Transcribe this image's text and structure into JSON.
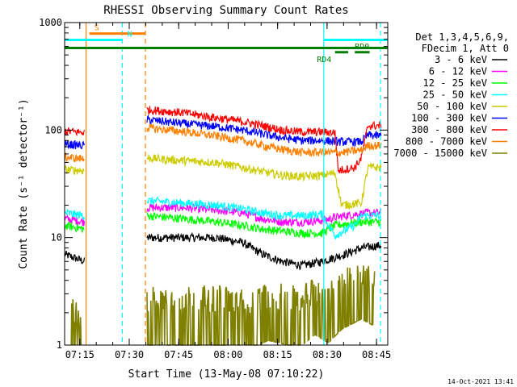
{
  "chart_data": {
    "type": "line",
    "title": "RHESSI Observing Summary Count Rates",
    "xlabel": "Start Time (13-May-08 07:10:22)",
    "ylabel": "Count Rate (s⁻¹ detector⁻¹)",
    "ylog": true,
    "xlim_min": [
      0,
      98
    ],
    "ylim": [
      1,
      1000
    ],
    "xticks": [
      {
        "t": 4.6,
        "label": "07:15"
      },
      {
        "t": 19.6,
        "label": "07:30"
      },
      {
        "t": 34.6,
        "label": "07:45"
      },
      {
        "t": 49.6,
        "label": "08:00"
      },
      {
        "t": 64.6,
        "label": "08:15"
      },
      {
        "t": 79.6,
        "label": "08:30"
      },
      {
        "t": 94.6,
        "label": "08:45"
      }
    ],
    "yticks": [
      {
        "v": 1,
        "label": "1"
      },
      {
        "v": 10,
        "label": "10"
      },
      {
        "v": 100,
        "label": "100"
      },
      {
        "v": 1000,
        "label": "1000"
      }
    ],
    "legend_title": [
      "Det 1,3,4,5,6,9,",
      "FDecim 1, Att 0"
    ],
    "legend_placement": "right",
    "footer_date": "14-Oct-2021 13:41",
    "flags": [
      {
        "label": "S",
        "color": "#ff8000",
        "x1": 7.5,
        "x2": 24.5,
        "level": 790,
        "label_x": 9,
        "label_pos": "above"
      },
      {
        "label": "N",
        "color": "#00ffff",
        "x1": 0,
        "x2": 17.5,
        "level": 690,
        "label_x": 19,
        "label_pos": "above"
      },
      {
        "label": "",
        "color": "#008000",
        "x1": 0,
        "x2": 98,
        "level": 580,
        "label_x": 0,
        "label_pos": "none"
      },
      {
        "label": "RD0",
        "color": "#008000",
        "x1": 88,
        "x2": 92.5,
        "level": 530,
        "label_x": 88,
        "label_pos": "above"
      },
      {
        "label": "RD4",
        "color": "#008000",
        "x1": 82,
        "x2": 86,
        "level": 530,
        "label_x": 76.5,
        "label_pos": "below"
      },
      {
        "label": "",
        "color": "#00ffff",
        "x1": 78.6,
        "x2": 98,
        "level": 690,
        "label_x": 0,
        "label_pos": "none"
      }
    ],
    "vlines": [
      {
        "t": 6.5,
        "color": "#ff8000",
        "dashed": false
      },
      {
        "t": 17.5,
        "color": "#00ffff",
        "dashed": true
      },
      {
        "t": 24.5,
        "color": "#ff8000",
        "dashed": true
      },
      {
        "t": 78.6,
        "color": "#00ffff",
        "dashed": false
      },
      {
        "t": 95.8,
        "color": "#00ffff",
        "dashed": true
      }
    ],
    "series": [
      {
        "name": "3 - 6 keV",
        "color": "#000000",
        "segments": [
          {
            "points": [
              [
                0,
                7
              ],
              [
                6,
                6
              ]
            ]
          },
          {
            "points": [
              [
                25,
                10
              ],
              [
                36,
                10
              ],
              [
                46,
                10
              ],
              [
                54,
                9
              ],
              [
                60,
                7
              ],
              [
                66,
                6
              ],
              [
                72,
                5.5
              ],
              [
                78,
                6
              ],
              [
                85,
                7
              ],
              [
                90,
                8
              ],
              [
                96,
                8.5
              ]
            ]
          }
        ]
      },
      {
        "name": "6 - 12 keV",
        "color": "#ff00ff",
        "segments": [
          {
            "points": [
              [
                0,
                15
              ],
              [
                6,
                14
              ]
            ]
          },
          {
            "points": [
              [
                25,
                19
              ],
              [
                36,
                19
              ],
              [
                46,
                18
              ],
              [
                54,
                17
              ],
              [
                60,
                15
              ],
              [
                66,
                14
              ],
              [
                72,
                14
              ],
              [
                78,
                14.5
              ],
              [
                85,
                16
              ],
              [
                92,
                17
              ],
              [
                96,
                17
              ]
            ]
          }
        ]
      },
      {
        "name": "12 - 25 keV",
        "color": "#00ff00",
        "segments": [
          {
            "points": [
              [
                0,
                13
              ],
              [
                6,
                12
              ]
            ]
          },
          {
            "points": [
              [
                25,
                16
              ],
              [
                36,
                15
              ],
              [
                46,
                14
              ],
              [
                54,
                13
              ],
              [
                60,
                12
              ],
              [
                66,
                11.5
              ],
              [
                72,
                11
              ],
              [
                78,
                11
              ],
              [
                82,
                13
              ],
              [
                90,
                14
              ],
              [
                96,
                14
              ]
            ]
          }
        ]
      },
      {
        "name": "25 - 50 keV",
        "color": "#00ffff",
        "segments": [
          {
            "points": [
              [
                0,
                17
              ],
              [
                6,
                16
              ]
            ]
          },
          {
            "points": [
              [
                25,
                22
              ],
              [
                36,
                21
              ],
              [
                46,
                20
              ],
              [
                54,
                18.5
              ],
              [
                60,
                17
              ],
              [
                66,
                16
              ],
              [
                72,
                16
              ],
              [
                78,
                16.5
              ],
              [
                82,
                10.5
              ],
              [
                88,
                13
              ],
              [
                90,
                16
              ],
              [
                96,
                16
              ]
            ]
          }
        ]
      },
      {
        "name": "50 - 100 keV",
        "color": "#cccc00",
        "segments": [
          {
            "points": [
              [
                0,
                43
              ],
              [
                6,
                42
              ]
            ]
          },
          {
            "points": [
              [
                25,
                55
              ],
              [
                36,
                52
              ],
              [
                46,
                50
              ],
              [
                54,
                45
              ],
              [
                60,
                41
              ],
              [
                66,
                38
              ],
              [
                72,
                37
              ],
              [
                78,
                38
              ],
              [
                82,
                40
              ],
              [
                84,
                20
              ],
              [
                90,
                21
              ],
              [
                92,
                45
              ],
              [
                96,
                45
              ]
            ]
          }
        ]
      },
      {
        "name": "100 - 300 keV",
        "color": "#0000ff",
        "segments": [
          {
            "points": [
              [
                0,
                74
              ],
              [
                6,
                72
              ]
            ]
          },
          {
            "points": [
              [
                25,
                125
              ],
              [
                36,
                115
              ],
              [
                46,
                108
              ],
              [
                54,
                100
              ],
              [
                60,
                92
              ],
              [
                66,
                85
              ],
              [
                72,
                80
              ],
              [
                78,
                80
              ],
              [
                84,
                78
              ],
              [
                90,
                78
              ],
              [
                92,
                90
              ],
              [
                96,
                88
              ]
            ]
          }
        ]
      },
      {
        "name": "300 - 800 keV",
        "color": "#ff0000",
        "segments": [
          {
            "points": [
              [
                0,
                98
              ],
              [
                6,
                95
              ]
            ]
          },
          {
            "points": [
              [
                25,
                155
              ],
              [
                36,
                145
              ],
              [
                46,
                130
              ],
              [
                54,
                120
              ],
              [
                60,
                110
              ],
              [
                66,
                100
              ],
              [
                72,
                96
              ],
              [
                78,
                96
              ],
              [
                82,
                95
              ],
              [
                83,
                42
              ],
              [
                88,
                45
              ],
              [
                90,
                55
              ],
              [
                92,
                110
              ],
              [
                96,
                110
              ]
            ]
          }
        ]
      },
      {
        "name": "800 - 7000 keV",
        "color": "#ff8000",
        "segments": [
          {
            "points": [
              [
                0,
                56
              ],
              [
                6,
                54
              ]
            ]
          },
          {
            "points": [
              [
                25,
                105
              ],
              [
                36,
                97
              ],
              [
                46,
                88
              ],
              [
                54,
                80
              ],
              [
                60,
                72
              ],
              [
                66,
                66
              ],
              [
                72,
                62
              ],
              [
                78,
                62
              ],
              [
                84,
                62
              ],
              [
                90,
                65
              ],
              [
                92,
                72
              ],
              [
                96,
                72
              ]
            ]
          }
        ]
      },
      {
        "name": "7000 - 15000 keV",
        "color": "#808000",
        "segments": [
          {
            "points": [
              [
                2,
                2
              ],
              [
                5,
                1
              ]
            ]
          },
          {
            "points": [
              [
                25,
                2
              ],
              [
                40,
                2
              ],
              [
                48,
                2
              ],
              [
                56,
                1.8
              ],
              [
                62,
                2.2
              ],
              [
                68,
                2
              ],
              [
                72,
                2
              ],
              [
                76,
                2.5
              ],
              [
                80,
                2.1
              ],
              [
                84,
                2.8
              ],
              [
                90,
                3.5
              ],
              [
                94,
                3
              ]
            ]
          }
        ]
      }
    ]
  }
}
